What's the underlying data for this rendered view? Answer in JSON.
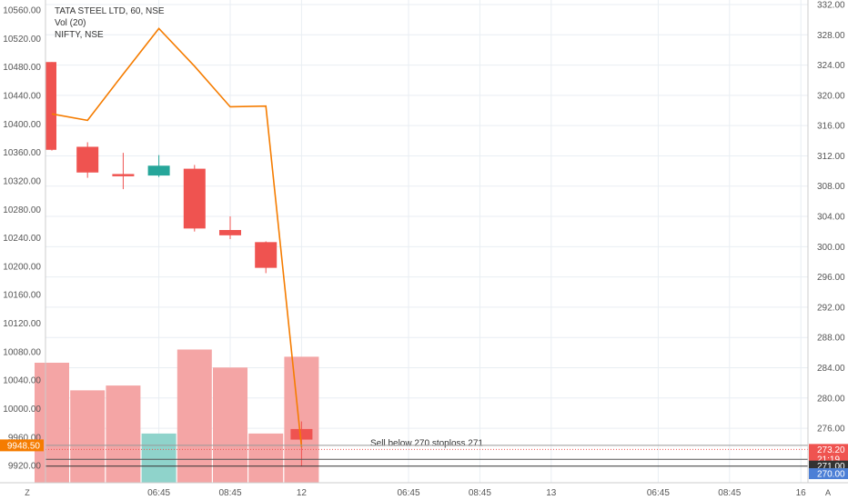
{
  "legend": {
    "symbol": "TATA STEEL LTD, 60, NSE",
    "volume": "Vol (20)",
    "compare": "NIFTY, NSE"
  },
  "colors": {
    "up": "#26a69a",
    "down": "#ef5350",
    "up_volume": "#8fd3cb",
    "down_volume": "#f4a5a5",
    "compare_line": "#f57c00",
    "grid": "#e9eef3",
    "axis_text": "#555555",
    "nifty_tag": "#f57c00",
    "tag_red": "#ef5350",
    "tag_dark": "#333333",
    "tag_blue": "#4c7fd6"
  },
  "chart_data": {
    "type": "candlestick",
    "left_axis": {
      "name": "NIFTY",
      "ticks": [
        "10560.00",
        "10520.00",
        "10480.00",
        "10440.00",
        "10400.00",
        "10360.00",
        "10320.00",
        "10280.00",
        "10240.00",
        "10200.00",
        "10160.00",
        "10120.00",
        "10080.00",
        "10040.00",
        "10000.00",
        "9960.00",
        "9920.00"
      ],
      "range": [
        9896,
        10574
      ],
      "current": "9948.50"
    },
    "right_axis": {
      "name": "TATA STEEL",
      "ticks": [
        "332.00",
        "328.00",
        "324.00",
        "320.00",
        "316.00",
        "312.00",
        "308.00",
        "304.00",
        "300.00",
        "296.00",
        "292.00",
        "288.00",
        "284.00",
        "280.00",
        "276.00"
      ],
      "range": [
        268.8,
        332.6
      ],
      "labels": [
        {
          "text": "273.20",
          "value": 273.2,
          "style": "red"
        },
        {
          "text": "21:19",
          "value": 271.9,
          "style": "red"
        },
        {
          "text": "271.00",
          "value": 271.0,
          "style": "dark"
        },
        {
          "text": "270.00",
          "value": 270.0,
          "style": "blue"
        }
      ]
    },
    "candles": [
      {
        "open": 324.4,
        "high": 324.4,
        "low": 312.7,
        "close": 312.8
      },
      {
        "open": 313.2,
        "high": 313.8,
        "low": 309.1,
        "close": 309.8
      },
      {
        "open": 309.6,
        "high": 312.4,
        "low": 307.6,
        "close": 309.3
      },
      {
        "open": 309.4,
        "high": 312.1,
        "low": 309.2,
        "close": 310.7
      },
      {
        "open": 310.3,
        "high": 310.8,
        "low": 302.0,
        "close": 302.4
      },
      {
        "open": 302.2,
        "high": 304.0,
        "low": 301.0,
        "close": 301.5
      },
      {
        "open": 300.6,
        "high": 300.7,
        "low": 296.5,
        "close": 297.2
      },
      {
        "open": 275.9,
        "high": 276.9,
        "low": 271.0,
        "close": 274.5
      }
    ],
    "volume": [
      {
        "value": 10,
        "up": false
      },
      {
        "value": 7.7,
        "up": false
      },
      {
        "value": 8.1,
        "up": false
      },
      {
        "value": 4.1,
        "up": true
      },
      {
        "value": 11.1,
        "up": false
      },
      {
        "value": 9.6,
        "up": false
      },
      {
        "value": 4.1,
        "up": false
      },
      {
        "value": 10.5,
        "up": false
      }
    ],
    "nifty_line": [
      10414,
      10405,
      10470,
      10534,
      10481,
      10424,
      10425,
      9946
    ],
    "annotation": {
      "text": "Sell below 270 stoploss 271",
      "level": 273.2
    },
    "x_ticks": [
      {
        "label": "06:45",
        "slot": 3
      },
      {
        "label": "08:45",
        "slot": 5
      },
      {
        "label": "12",
        "slot": 7
      },
      {
        "label": "06:45",
        "slot": 10
      },
      {
        "label": "08:45",
        "slot": 12
      },
      {
        "label": "13",
        "slot": 14
      },
      {
        "label": "06:45",
        "slot": 17
      },
      {
        "label": "08:45",
        "slot": 19
      },
      {
        "label": "16",
        "slot": 21
      }
    ],
    "corner_left": "Z",
    "corner_right": "A"
  }
}
